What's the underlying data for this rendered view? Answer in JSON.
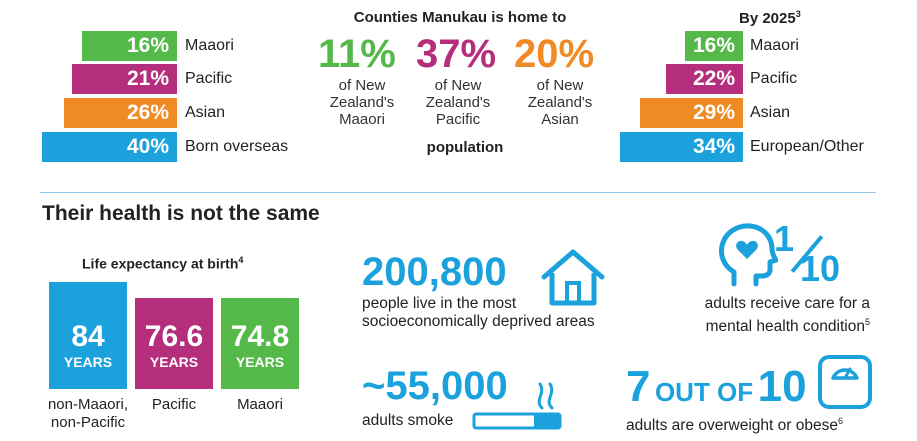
{
  "colors": {
    "green": "#54b948",
    "magenta": "#b52e7b",
    "orange": "#f08a24",
    "blue": "#1ba1dc",
    "divider": "#8fc9ea"
  },
  "left_bars": [
    {
      "value": "16%",
      "label": "Maaori"
    },
    {
      "value": "21%",
      "label": "Pacific"
    },
    {
      "value": "26%",
      "label": "Asian"
    },
    {
      "value": "40%",
      "label": "Born overseas"
    }
  ],
  "middle": {
    "title": "Counties Manukau is home to",
    "stats": [
      {
        "value": "11%",
        "text_lines": [
          "of New",
          "Zealand's",
          "Maaori"
        ]
      },
      {
        "value": "37%",
        "text_lines": [
          "of New",
          "Zealand's",
          "Pacific"
        ]
      },
      {
        "value": "20%",
        "text_lines": [
          "of New",
          "Zealand's",
          "Asian"
        ]
      }
    ],
    "footer": "population"
  },
  "right": {
    "title": "By 2025",
    "title_sup": "3",
    "bars": [
      {
        "value": "16%",
        "label": "Maaori"
      },
      {
        "value": "22%",
        "label": "Pacific"
      },
      {
        "value": "29%",
        "label": "Asian"
      },
      {
        "value": "34%",
        "label": "European/Other"
      }
    ]
  },
  "health": {
    "heading": "Their health is not the same",
    "life": {
      "title": "Life expectancy at birth",
      "title_sup": "4",
      "bars": [
        {
          "value": "84",
          "unit": "YEARS",
          "label_lines": [
            "non-Maaori,",
            "non-Pacific"
          ]
        },
        {
          "value": "76.6",
          "unit": "YEARS",
          "label_lines": [
            "Pacific"
          ]
        },
        {
          "value": "74.8",
          "unit": "YEARS",
          "label_lines": [
            "Maaori"
          ]
        }
      ]
    },
    "deprived": {
      "number": "200,800",
      "lines": [
        "people live in the most",
        "socioeconomically deprived areas"
      ]
    },
    "mental": {
      "numerator": "1",
      "denominator": "10",
      "lines": [
        "adults receive care for a",
        "mental health condition"
      ],
      "sup": "5"
    },
    "smoke": {
      "number": "~55,000",
      "line": "adults smoke"
    },
    "obese": {
      "n1": "7",
      "out_of": "OUT OF",
      "n2": "10",
      "line": "adults are overweight or obese",
      "sup": "6"
    }
  }
}
